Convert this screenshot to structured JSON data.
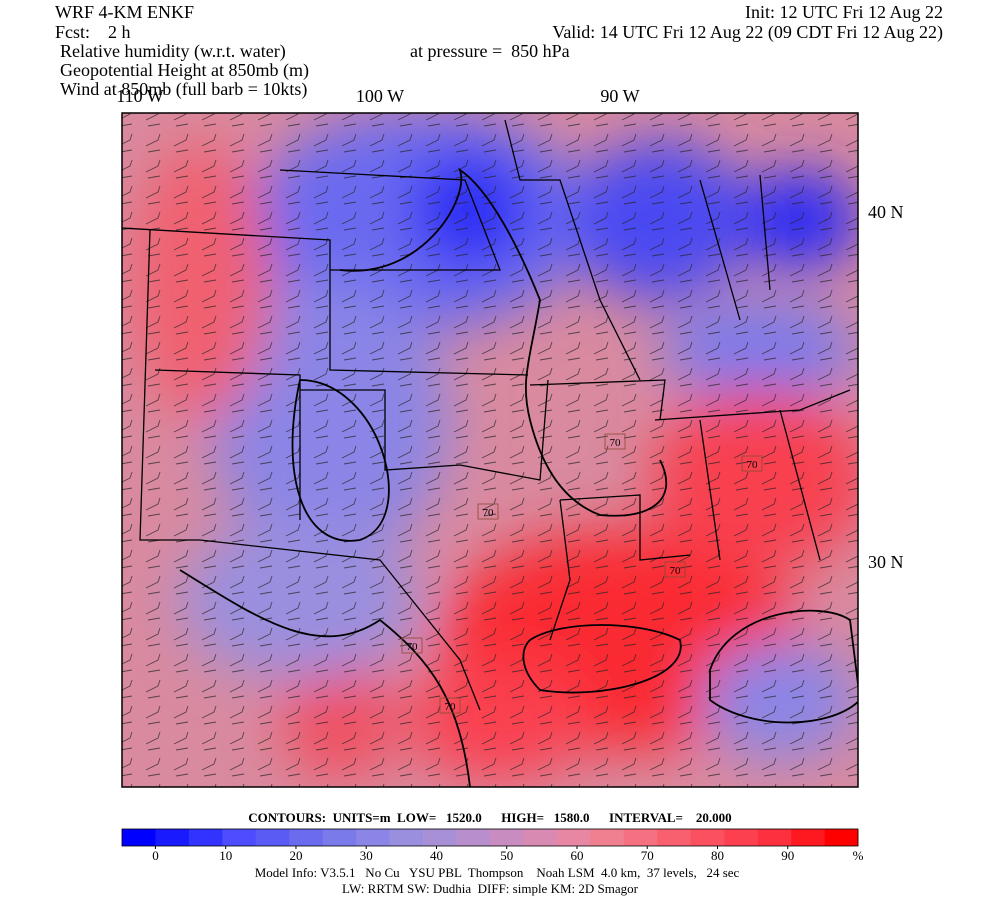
{
  "header": {
    "left": [
      "WRF 4-KM ENKF",
      "Fcst:    2 h"
    ],
    "fields": [
      "Relative humidity (w.r.t. water)",
      "Geopotential Height at 850mb (m)",
      "Wind at 850mb (full barb = 10kts)"
    ],
    "init": "Init: 12 UTC Fri 12 Aug 22",
    "valid": "Valid: 14 UTC Fri 12 Aug 22 (09 CDT Fri 12 Aug 22)",
    "pressure": "at pressure =  850 hPa"
  },
  "map": {
    "lon_labels": [
      "110 W",
      "100 W",
      "90 W"
    ],
    "lat_labels": [
      "40 N",
      "30 N"
    ],
    "contour_labels": [
      "70",
      "70",
      "70",
      "70",
      "70",
      "70"
    ]
  },
  "colorbar": {
    "contours": "CONTOURS:  UNITS=m  LOW=   1520.0      HIGH=   1580.0      INTERVAL=    20.000",
    "ticks": [
      0,
      10,
      20,
      30,
      40,
      50,
      60,
      70,
      80,
      90
    ],
    "unit": "%",
    "colors": [
      "#0000ff",
      "#1a1aff",
      "#3333ff",
      "#4d4dff",
      "#5a5af5",
      "#6b6bf0",
      "#7a7aeb",
      "#8a85e6",
      "#9a8fdf",
      "#a890d6",
      "#b88fcc",
      "#c88cc0",
      "#d88ab2",
      "#e887a3",
      "#f08090",
      "#f57080",
      "#f86070",
      "#fa5060",
      "#fc4050",
      "#fd3040",
      "#fe1820",
      "#ff0000"
    ]
  },
  "footer": [
    "Model Info: V3.5.1   No Cu   YSU PBL  Thompson    Noah LSM  4.0 km,  37 levels,   24 sec",
    "LW: RRTM SW: Dudhia  DIFF: simple KM: 2D Smagor"
  ]
}
